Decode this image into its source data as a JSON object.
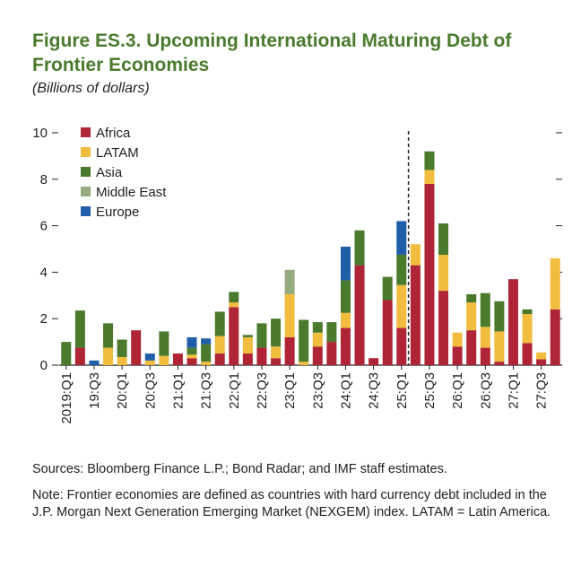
{
  "figure": {
    "title": "Figure ES.3. Upcoming International Maturing Debt of Frontier Economies",
    "subtitle": "(Billions of dollars)"
  },
  "chart_data": {
    "type": "bar",
    "stacked": true,
    "ylim": [
      0,
      10
    ],
    "yticks": [
      "0",
      "2",
      "4",
      "6",
      "8",
      "10"
    ],
    "grid": false,
    "legend_position": "top-left",
    "vertical_reference_line_after": "25:Q1",
    "tick_labels": [
      "2019:Q1",
      "19:Q3",
      "20:Q1",
      "20:Q3",
      "21:Q1",
      "21:Q3",
      "22:Q1",
      "22:Q3",
      "23:Q1",
      "23:Q3",
      "24:Q1",
      "24:Q3",
      "25:Q1",
      "25:Q3",
      "26:Q1",
      "26:Q3",
      "27:Q1",
      "27:Q3"
    ],
    "colors": {
      "Africa": "#b02437",
      "LATAM": "#f2bc3e",
      "Asia": "#4a7a2c",
      "Middle East": "#96aa80",
      "Europe": "#1f5ea8"
    },
    "categories": [
      "19Q1",
      "19Q2",
      "19Q3",
      "19Q4",
      "20Q1",
      "20Q2",
      "20Q3",
      "20Q4",
      "21Q1",
      "21Q2",
      "21Q3",
      "21Q4",
      "22Q1",
      "22Q2",
      "22Q3",
      "22Q4",
      "23Q1",
      "23Q2",
      "23Q3",
      "23Q4",
      "24Q1",
      "24Q2",
      "24Q3",
      "24Q4",
      "25Q1",
      "25Q2",
      "25Q3",
      "25Q4",
      "26Q1",
      "26Q2",
      "26Q3",
      "26Q4",
      "27Q1",
      "27Q2",
      "27Q3",
      "27Q4"
    ],
    "series": [
      {
        "name": "Africa",
        "values": [
          0,
          0.75,
          0,
          0,
          0,
          1.5,
          0,
          0,
          0.5,
          0.3,
          0,
          0.5,
          2.5,
          0.5,
          0.75,
          0.3,
          1.2,
          0,
          0.8,
          1.0,
          1.6,
          4.3,
          0.3,
          2.8,
          1.6,
          4.3,
          7.8,
          3.2,
          0.8,
          1.5,
          0.75,
          0.15,
          3.7,
          0.95,
          0.25,
          2.4
        ]
      },
      {
        "name": "LATAM",
        "values": [
          0,
          0,
          0,
          0.75,
          0.35,
          0,
          0.2,
          0.4,
          0,
          0.15,
          0.15,
          0.75,
          0.2,
          0.7,
          0,
          0.5,
          1.85,
          0.15,
          0.6,
          0,
          0.65,
          0,
          0,
          0,
          1.85,
          0.9,
          0.6,
          1.55,
          0.6,
          1.2,
          0.9,
          1.3,
          0,
          1.25,
          0.3,
          2.2
        ]
      },
      {
        "name": "Asia",
        "values": [
          1.0,
          1.6,
          0,
          1.05,
          0.75,
          0,
          0,
          1.05,
          0,
          0.3,
          0.75,
          1.05,
          0.45,
          0.1,
          1.05,
          1.2,
          0,
          1.8,
          0.45,
          0.85,
          1.4,
          1.5,
          0,
          1.0,
          1.3,
          0,
          0.8,
          1.35,
          0,
          0.35,
          1.45,
          1.3,
          0,
          0.2,
          0,
          0
        ]
      },
      {
        "name": "Middle East",
        "values": [
          0,
          0,
          0,
          0,
          0,
          0,
          0,
          0,
          0,
          0,
          0,
          0,
          0,
          0,
          0,
          0,
          1.05,
          0,
          0,
          0,
          0,
          0,
          0,
          0,
          0,
          0,
          0,
          0,
          0,
          0,
          0,
          0,
          0,
          0,
          0,
          0
        ]
      },
      {
        "name": "Europe",
        "values": [
          0,
          0,
          0.2,
          0,
          0,
          0,
          0.3,
          0,
          0,
          0.45,
          0.25,
          0,
          0,
          0,
          0,
          0,
          0,
          0,
          0,
          0,
          1.45,
          0,
          0,
          0,
          1.45,
          0,
          0,
          0,
          0,
          0,
          0,
          0,
          0,
          0,
          0,
          0
        ]
      }
    ]
  },
  "notes": {
    "sources": "Sources: Bloomberg Finance L.P.; Bond Radar; and IMF staff estimates.",
    "note": "Note: Frontier economies are defined as countries with hard currency debt included in the J.P. Morgan Next Generation Emerging Market (NEXGEM) index. LATAM = Latin America."
  }
}
